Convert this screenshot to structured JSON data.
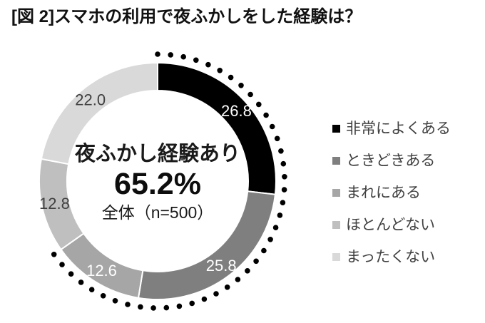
{
  "title": "[図 2]スマホの利用で夜ふかしをした経験は？",
  "chart_data": {
    "type": "pie",
    "subtype": "donut",
    "title": "スマホの利用で夜ふかしをした経験は？",
    "categories": [
      "非常によくある",
      "ときどきある",
      "まれにある",
      "ほとんどない",
      "まったくない"
    ],
    "values": [
      26.8,
      25.8,
      12.6,
      12.8,
      22.0
    ],
    "values_unit": "%",
    "colors": [
      "#000000",
      "#7f7f7f",
      "#a6a6a6",
      "#bfbfbf",
      "#d9d9d9"
    ],
    "value_label_colors": [
      "#ffffff",
      "#ffffff",
      "#ffffff",
      "#404040",
      "#404040"
    ],
    "start_angle_deg": 0,
    "direction": "clockwise",
    "center_label": {
      "title": "夜ふかし経験あり",
      "value": "65.2%",
      "note": "全体（n=500）"
    },
    "highlight": {
      "label": "夜ふかし経験あり",
      "percent": 65.2,
      "style": "dotted_arc",
      "color": "#000000",
      "covered_categories": [
        "非常によくある",
        "ときどきある",
        "まれにある"
      ]
    },
    "legend_position": "right",
    "sample_size": "n=500"
  }
}
